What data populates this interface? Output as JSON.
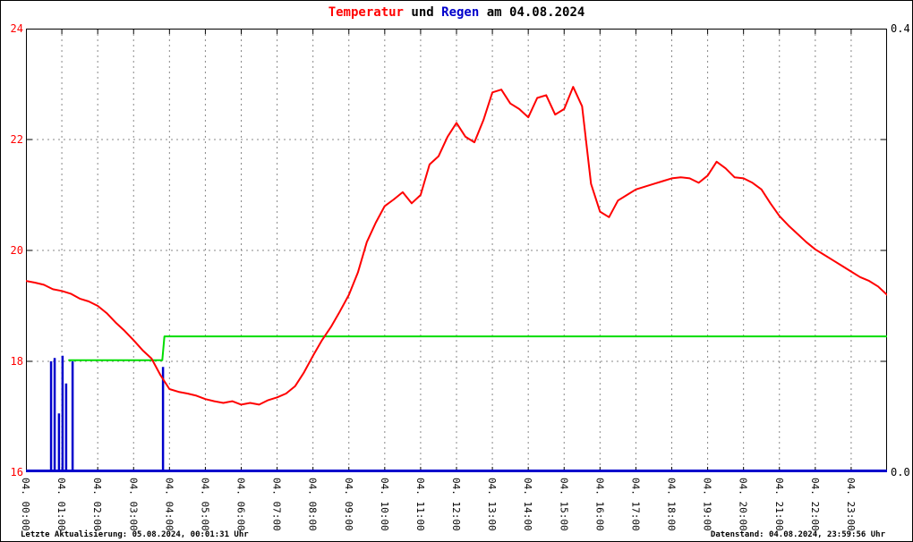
{
  "title": {
    "temperatur": "Temperatur",
    "und": " und ",
    "regen": "Regen",
    "date": " am 04.08.2024"
  },
  "footer": {
    "left": "Letzte Aktualisierung: 05.08.2024, 00:01:31 Uhr",
    "right": "Datenstand: 04.08.2024, 23:59:56 Uhr"
  },
  "colors": {
    "temperature": "#ff0000",
    "rain": "#0000cc",
    "reference_line": "#00dd00",
    "grid": "#888888",
    "border": "#000000",
    "left_axis_text": "#ff0000",
    "right_axis_text": "#000000",
    "background": "#ffffff"
  },
  "chart_data": {
    "type": "line",
    "title": "Temperatur und Regen am 04.08.2024",
    "grid": "dashed",
    "legend_position": "none",
    "x_axis": {
      "hours_range": [
        0,
        24
      ],
      "tick_labels": [
        "04. 00:00",
        "04. 01:00",
        "04. 02:00",
        "04. 03:00",
        "04. 04:00",
        "04. 05:00",
        "04. 06:00",
        "04. 07:00",
        "04. 08:00",
        "04. 09:00",
        "04. 10:00",
        "04. 11:00",
        "04. 12:00",
        "04. 13:00",
        "04. 14:00",
        "04. 15:00",
        "04. 16:00",
        "04. 17:00",
        "04. 18:00",
        "04. 19:00",
        "04. 20:00",
        "04. 21:00",
        "04. 22:00",
        "04. 23:00"
      ]
    },
    "y_left": {
      "min": 16,
      "max": 24,
      "tick_values": [
        16,
        18,
        20,
        22,
        24
      ],
      "tick_labels": [
        "16",
        "18",
        "20",
        "22",
        "24"
      ],
      "grid_values": [
        18,
        20,
        22
      ]
    },
    "y_right": {
      "min": 0.0,
      "max": 0.4,
      "labeled_ticks": [
        {
          "value": 0.4,
          "label": "0.4"
        },
        {
          "value": 0.0,
          "label": "0.0"
        }
      ]
    },
    "series": [
      {
        "name": "Temperatur",
        "axis": "left",
        "color": "#ff0000",
        "x_start_hours": 0,
        "x_step_hours": 0.25,
        "values": [
          19.45,
          19.42,
          19.38,
          19.3,
          19.27,
          19.22,
          19.13,
          19.08,
          19.0,
          18.87,
          18.7,
          18.55,
          18.38,
          18.2,
          18.05,
          17.75,
          17.5,
          17.45,
          17.42,
          17.38,
          17.32,
          17.28,
          17.25,
          17.28,
          17.22,
          17.25,
          17.22,
          17.3,
          17.35,
          17.42,
          17.55,
          17.8,
          18.1,
          18.38,
          18.62,
          18.9,
          19.2,
          19.6,
          20.15,
          20.5,
          20.8,
          20.92,
          21.05,
          20.85,
          21.0,
          21.55,
          21.7,
          22.05,
          22.3,
          22.05,
          21.95,
          22.35,
          22.85,
          22.9,
          22.65,
          22.55,
          22.4,
          22.75,
          22.8,
          22.45,
          22.55,
          22.95,
          22.6,
          21.2,
          20.7,
          20.6,
          20.9,
          21.0,
          21.1,
          21.15,
          21.2,
          21.25,
          21.3,
          21.32,
          21.3,
          21.22,
          21.35,
          21.6,
          21.48,
          21.32,
          21.3,
          21.22,
          21.1,
          20.85,
          20.62,
          20.45,
          20.3,
          20.15,
          20.02,
          19.92,
          19.82,
          19.72,
          19.62,
          19.52,
          19.45,
          19.35,
          19.2
        ]
      },
      {
        "name": "green-reference-line",
        "axis": "left",
        "color": "#00dd00",
        "x_hours": [
          1.2,
          3.8,
          3.86,
          24
        ],
        "values": [
          18.02,
          18.02,
          18.45,
          18.45
        ]
      },
      {
        "name": "Regen",
        "axis": "right",
        "color": "#0000cc",
        "baseline_value": 0.0,
        "impulses_x_hours": [
          0.7,
          0.8,
          0.92,
          1.02,
          1.12,
          1.3,
          3.82
        ],
        "impulses_values": [
          0.1,
          0.103,
          0.053,
          0.105,
          0.08,
          0.1,
          0.095
        ]
      }
    ]
  }
}
